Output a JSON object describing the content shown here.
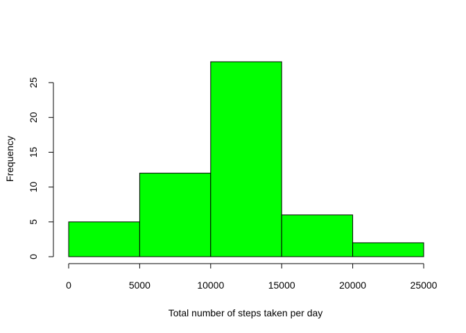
{
  "chart_data": {
    "type": "bar",
    "title": "",
    "xlabel": "Total number of steps taken per day",
    "ylabel": "Frequency",
    "bins": [
      {
        "from": 0,
        "to": 5000,
        "count": 5
      },
      {
        "from": 5000,
        "to": 10000,
        "count": 12
      },
      {
        "from": 10000,
        "to": 15000,
        "count": 28
      },
      {
        "from": 15000,
        "to": 20000,
        "count": 6
      },
      {
        "from": 20000,
        "to": 25000,
        "count": 2
      }
    ],
    "xticks": [
      "0",
      "5000",
      "10000",
      "15000",
      "20000",
      "25000"
    ],
    "yticks": [
      "0",
      "5",
      "10",
      "15",
      "20",
      "25"
    ],
    "xlim": [
      0,
      25000
    ],
    "ylim": [
      0,
      28
    ],
    "bar_color": "#00ff00",
    "border_color": "#000000",
    "grid": false
  }
}
